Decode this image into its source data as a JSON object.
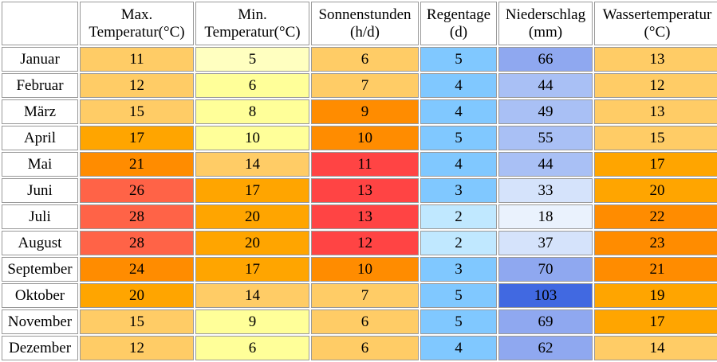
{
  "table": {
    "headers": [
      {
        "line1": "Max.",
        "line2": "Temperatur(°C)"
      },
      {
        "line1": "Min.",
        "line2": "Temperatur(°C)"
      },
      {
        "line1": "Sonnenstunden",
        "line2": "(h/d)"
      },
      {
        "line1": "Regentage",
        "line2": "(d)"
      },
      {
        "line1": "Niederschlag",
        "line2": "(mm)"
      },
      {
        "line1": "Wassertemperatur",
        "line2": "(°C)"
      }
    ],
    "rows": [
      {
        "month": "Januar",
        "values": [
          "11",
          "5",
          "6",
          "5",
          "66",
          "13"
        ],
        "colors": [
          "#ffcc66",
          "#ffffc0",
          "#ffcc66",
          "#80c8ff",
          "#8fa8f0",
          "#ffcc66"
        ]
      },
      {
        "month": "Februar",
        "values": [
          "12",
          "6",
          "7",
          "4",
          "44",
          "12"
        ],
        "colors": [
          "#ffcc66",
          "#ffff99",
          "#ffcc66",
          "#80c8ff",
          "#a9c0f5",
          "#ffcc66"
        ]
      },
      {
        "month": "März",
        "values": [
          "15",
          "8",
          "9",
          "4",
          "49",
          "13"
        ],
        "colors": [
          "#ffcc66",
          "#ffff99",
          "#ff8c00",
          "#80c8ff",
          "#a9c0f5",
          "#ffcc66"
        ]
      },
      {
        "month": "April",
        "values": [
          "17",
          "10",
          "10",
          "5",
          "55",
          "15"
        ],
        "colors": [
          "#ffa500",
          "#ffff99",
          "#ff8c00",
          "#80c8ff",
          "#a9c0f5",
          "#ffcc66"
        ]
      },
      {
        "month": "Mai",
        "values": [
          "21",
          "14",
          "11",
          "4",
          "44",
          "17"
        ],
        "colors": [
          "#ff8c00",
          "#ffcc66",
          "#ff4444",
          "#80c8ff",
          "#a9c0f5",
          "#ffa500"
        ]
      },
      {
        "month": "Juni",
        "values": [
          "26",
          "17",
          "13",
          "3",
          "33",
          "20"
        ],
        "colors": [
          "#ff6347",
          "#ffa500",
          "#ff4444",
          "#80c8ff",
          "#d5e3fb",
          "#ffa500"
        ]
      },
      {
        "month": "Juli",
        "values": [
          "28",
          "20",
          "13",
          "2",
          "18",
          "22"
        ],
        "colors": [
          "#ff6347",
          "#ffa500",
          "#ff4444",
          "#c0e8ff",
          "#eaf2fd",
          "#ff8c00"
        ]
      },
      {
        "month": "August",
        "values": [
          "28",
          "20",
          "12",
          "2",
          "37",
          "23"
        ],
        "colors": [
          "#ff6347",
          "#ffa500",
          "#ff4444",
          "#c0e8ff",
          "#d5e3fb",
          "#ff8c00"
        ]
      },
      {
        "month": "September",
        "values": [
          "24",
          "17",
          "10",
          "3",
          "70",
          "21"
        ],
        "colors": [
          "#ff8c00",
          "#ffa500",
          "#ff8c00",
          "#80c8ff",
          "#8fa8f0",
          "#ff8c00"
        ]
      },
      {
        "month": "Oktober",
        "values": [
          "20",
          "14",
          "7",
          "5",
          "103",
          "19"
        ],
        "colors": [
          "#ffa500",
          "#ffcc66",
          "#ffcc66",
          "#80c8ff",
          "#4169e1",
          "#ffa500"
        ]
      },
      {
        "month": "November",
        "values": [
          "15",
          "9",
          "6",
          "5",
          "69",
          "17"
        ],
        "colors": [
          "#ffcc66",
          "#ffff99",
          "#ffcc66",
          "#80c8ff",
          "#8fa8f0",
          "#ffa500"
        ]
      },
      {
        "month": "Dezember",
        "values": [
          "12",
          "6",
          "6",
          "4",
          "62",
          "14"
        ],
        "colors": [
          "#ffcc66",
          "#ffff99",
          "#ffcc66",
          "#80c8ff",
          "#8fa8f0",
          "#ffcc66"
        ]
      }
    ]
  }
}
